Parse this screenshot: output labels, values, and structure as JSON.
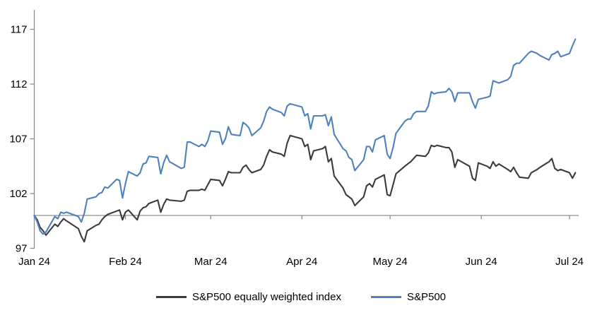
{
  "chart_data": {
    "type": "line",
    "title": "",
    "x_axis": {
      "tick_labels": [
        "Jan 24",
        "Feb 24",
        "Mar 24",
        "Apr 24",
        "May 24",
        "Jun 24",
        "Jul 24"
      ],
      "tick_day_offsets": [
        0,
        31,
        60,
        91,
        121,
        152,
        182
      ],
      "baseline_value": 100
    },
    "y_axis": {
      "ticks": [
        97,
        102,
        107,
        112,
        117
      ],
      "min": 97,
      "max": 118.8
    },
    "grid": "off",
    "legend_position": "bottom",
    "x_days": [
      0,
      1,
      2,
      3,
      4,
      7,
      8,
      9,
      10,
      11,
      15,
      16,
      17,
      18,
      21,
      22,
      23,
      24,
      25,
      28,
      29,
      30,
      31,
      32,
      35,
      36,
      37,
      38,
      39,
      42,
      43,
      44,
      45,
      46,
      50,
      51,
      52,
      53,
      56,
      57,
      58,
      59,
      60,
      63,
      64,
      65,
      66,
      67,
      70,
      71,
      72,
      73,
      74,
      77,
      78,
      79,
      80,
      81,
      84,
      85,
      86,
      87,
      91,
      92,
      93,
      94,
      95,
      98,
      99,
      100,
      101,
      102,
      105,
      106,
      107,
      108,
      109,
      112,
      113,
      114,
      115,
      116,
      119,
      120,
      121,
      122,
      123,
      126,
      127,
      128,
      129,
      130,
      133,
      134,
      135,
      136,
      137,
      140,
      141,
      142,
      143,
      144,
      148,
      149,
      150,
      151,
      154,
      155,
      156,
      157,
      158,
      161,
      162,
      163,
      164,
      165,
      168,
      169,
      171,
      172,
      175,
      176,
      177,
      178,
      179,
      182,
      183,
      184
    ],
    "series": [
      {
        "name": "S&P500 equally weighted index",
        "color": "#3b3b3b",
        "values": [
          100.0,
          99.6,
          98.9,
          98.6,
          98.2,
          99.2,
          99.0,
          99.4,
          99.7,
          99.5,
          98.8,
          98.1,
          97.6,
          98.6,
          99.1,
          99.2,
          99.6,
          99.9,
          100.1,
          100.4,
          100.5,
          99.6,
          100.3,
          100.5,
          99.6,
          100.4,
          100.7,
          100.8,
          101.1,
          101.4,
          100.3,
          101.0,
          101.5,
          101.4,
          101.3,
          101.4,
          102.2,
          102.3,
          102.3,
          102.4,
          102.3,
          102.8,
          103.3,
          103.2,
          102.7,
          103.3,
          104.0,
          103.9,
          103.9,
          104.4,
          104.6,
          104.2,
          103.9,
          104.2,
          104.6,
          105.4,
          106.0,
          105.8,
          105.6,
          105.4,
          106.6,
          107.3,
          107.0,
          106.3,
          106.5,
          105.1,
          105.9,
          106.1,
          106.3,
          104.9,
          105.2,
          103.6,
          102.5,
          101.9,
          101.7,
          101.5,
          100.9,
          101.7,
          102.7,
          102.9,
          102.6,
          103.3,
          103.7,
          101.9,
          101.8,
          102.8,
          103.8,
          104.5,
          104.7,
          104.9,
          105.2,
          105.5,
          105.4,
          105.7,
          106.4,
          106.3,
          106.4,
          106.2,
          106.2,
          105.8,
          104.4,
          105.1,
          104.5,
          103.4,
          103.2,
          104.8,
          104.5,
          104.3,
          104.9,
          104.5,
          104.7,
          104.2,
          104.0,
          104.4,
          103.9,
          103.5,
          103.4,
          103.9,
          104.2,
          104.4,
          104.9,
          105.2,
          104.3,
          104.1,
          104.2,
          103.9,
          103.4,
          103.9
        ]
      },
      {
        "name": "S&P500",
        "color": "#4f81bd",
        "values": [
          100.0,
          99.4,
          98.6,
          98.3,
          98.5,
          99.9,
          99.7,
          100.3,
          100.2,
          100.3,
          99.9,
          99.4,
          100.2,
          101.5,
          101.7,
          102.0,
          102.1,
          102.6,
          102.5,
          103.3,
          103.2,
          101.6,
          102.9,
          104.0,
          103.6,
          103.9,
          104.7,
          104.8,
          105.4,
          105.3,
          103.8,
          104.8,
          105.5,
          104.9,
          104.3,
          104.4,
          106.7,
          106.7,
          106.3,
          106.5,
          106.3,
          106.8,
          107.7,
          107.6,
          106.5,
          107.0,
          108.1,
          107.4,
          107.3,
          108.5,
          108.3,
          108.0,
          107.3,
          108.0,
          108.6,
          109.5,
          109.9,
          109.7,
          109.4,
          109.1,
          110.0,
          110.2,
          109.9,
          109.1,
          109.3,
          107.9,
          109.1,
          109.1,
          109.2,
          108.2,
          109.0,
          107.4,
          106.1,
          105.9,
          105.3,
          105.1,
          104.1,
          105.1,
          106.3,
          106.3,
          105.8,
          106.9,
          107.3,
          105.6,
          105.2,
          106.2,
          107.5,
          108.6,
          108.8,
          108.8,
          109.3,
          109.5,
          109.5,
          110.0,
          111.3,
          111.1,
          111.2,
          111.3,
          111.6,
          111.3,
          110.4,
          111.2,
          111.2,
          110.4,
          109.8,
          110.6,
          110.8,
          110.9,
          112.3,
          112.2,
          112.1,
          112.4,
          112.7,
          113.7,
          113.9,
          113.9,
          114.8,
          115.0,
          114.8,
          114.6,
          114.2,
          114.7,
          114.8,
          115.0,
          114.5,
          114.8,
          115.5,
          116.1
        ]
      }
    ]
  },
  "legend": {
    "items": [
      {
        "label": "S&P500 equally weighted index",
        "color": "#3b3b3b"
      },
      {
        "label": "S&P500",
        "color": "#4f81bd"
      }
    ]
  },
  "colors": {
    "axis": "#8f8f8f",
    "text": "#000000",
    "background": "#ffffff"
  }
}
